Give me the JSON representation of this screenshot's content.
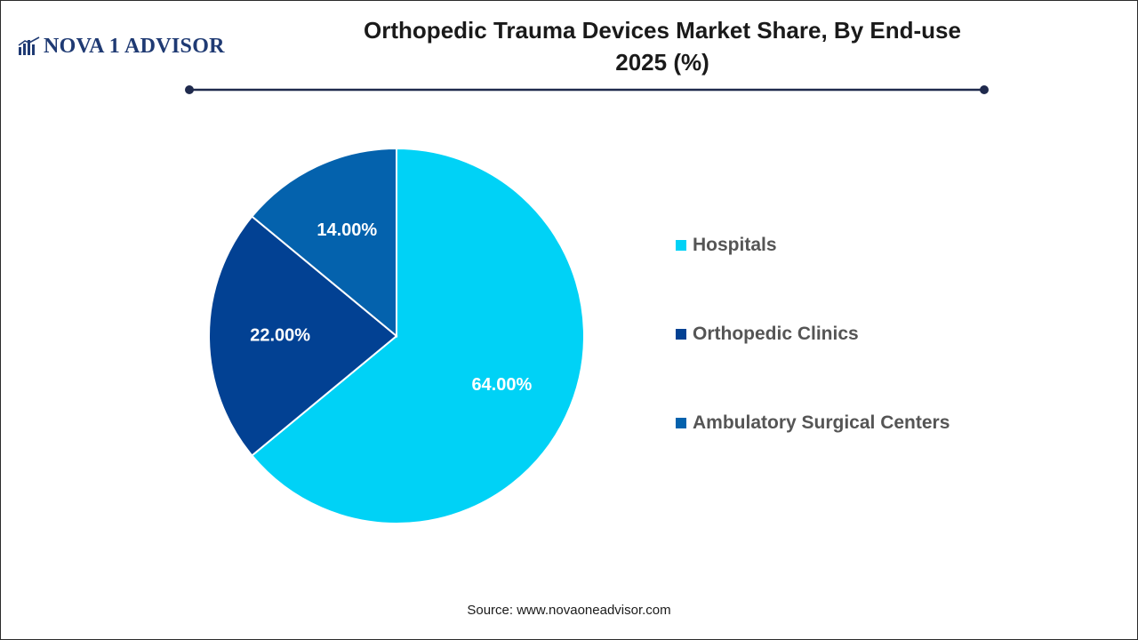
{
  "brand": {
    "logo_text": "NOVA 1 ADVISOR"
  },
  "chart_data": {
    "type": "pie",
    "title": "Orthopedic Trauma Devices Market Share, By End-use",
    "subtitle": "2025 (%)",
    "categories": [
      "Hospitals",
      "Orthopedic Clinics",
      "Ambulatory Surgical Centers"
    ],
    "values": [
      64.0,
      22.0,
      14.0
    ],
    "data_labels": [
      "64.00%",
      "22.00%",
      "14.00%"
    ],
    "colors": [
      "#00d2f6",
      "#024193",
      "#0462ad"
    ],
    "legend_position": "right",
    "start_angle": "12 o'clock",
    "direction": "clockwise"
  },
  "source": "Source: www.novaoneadvisor.com"
}
